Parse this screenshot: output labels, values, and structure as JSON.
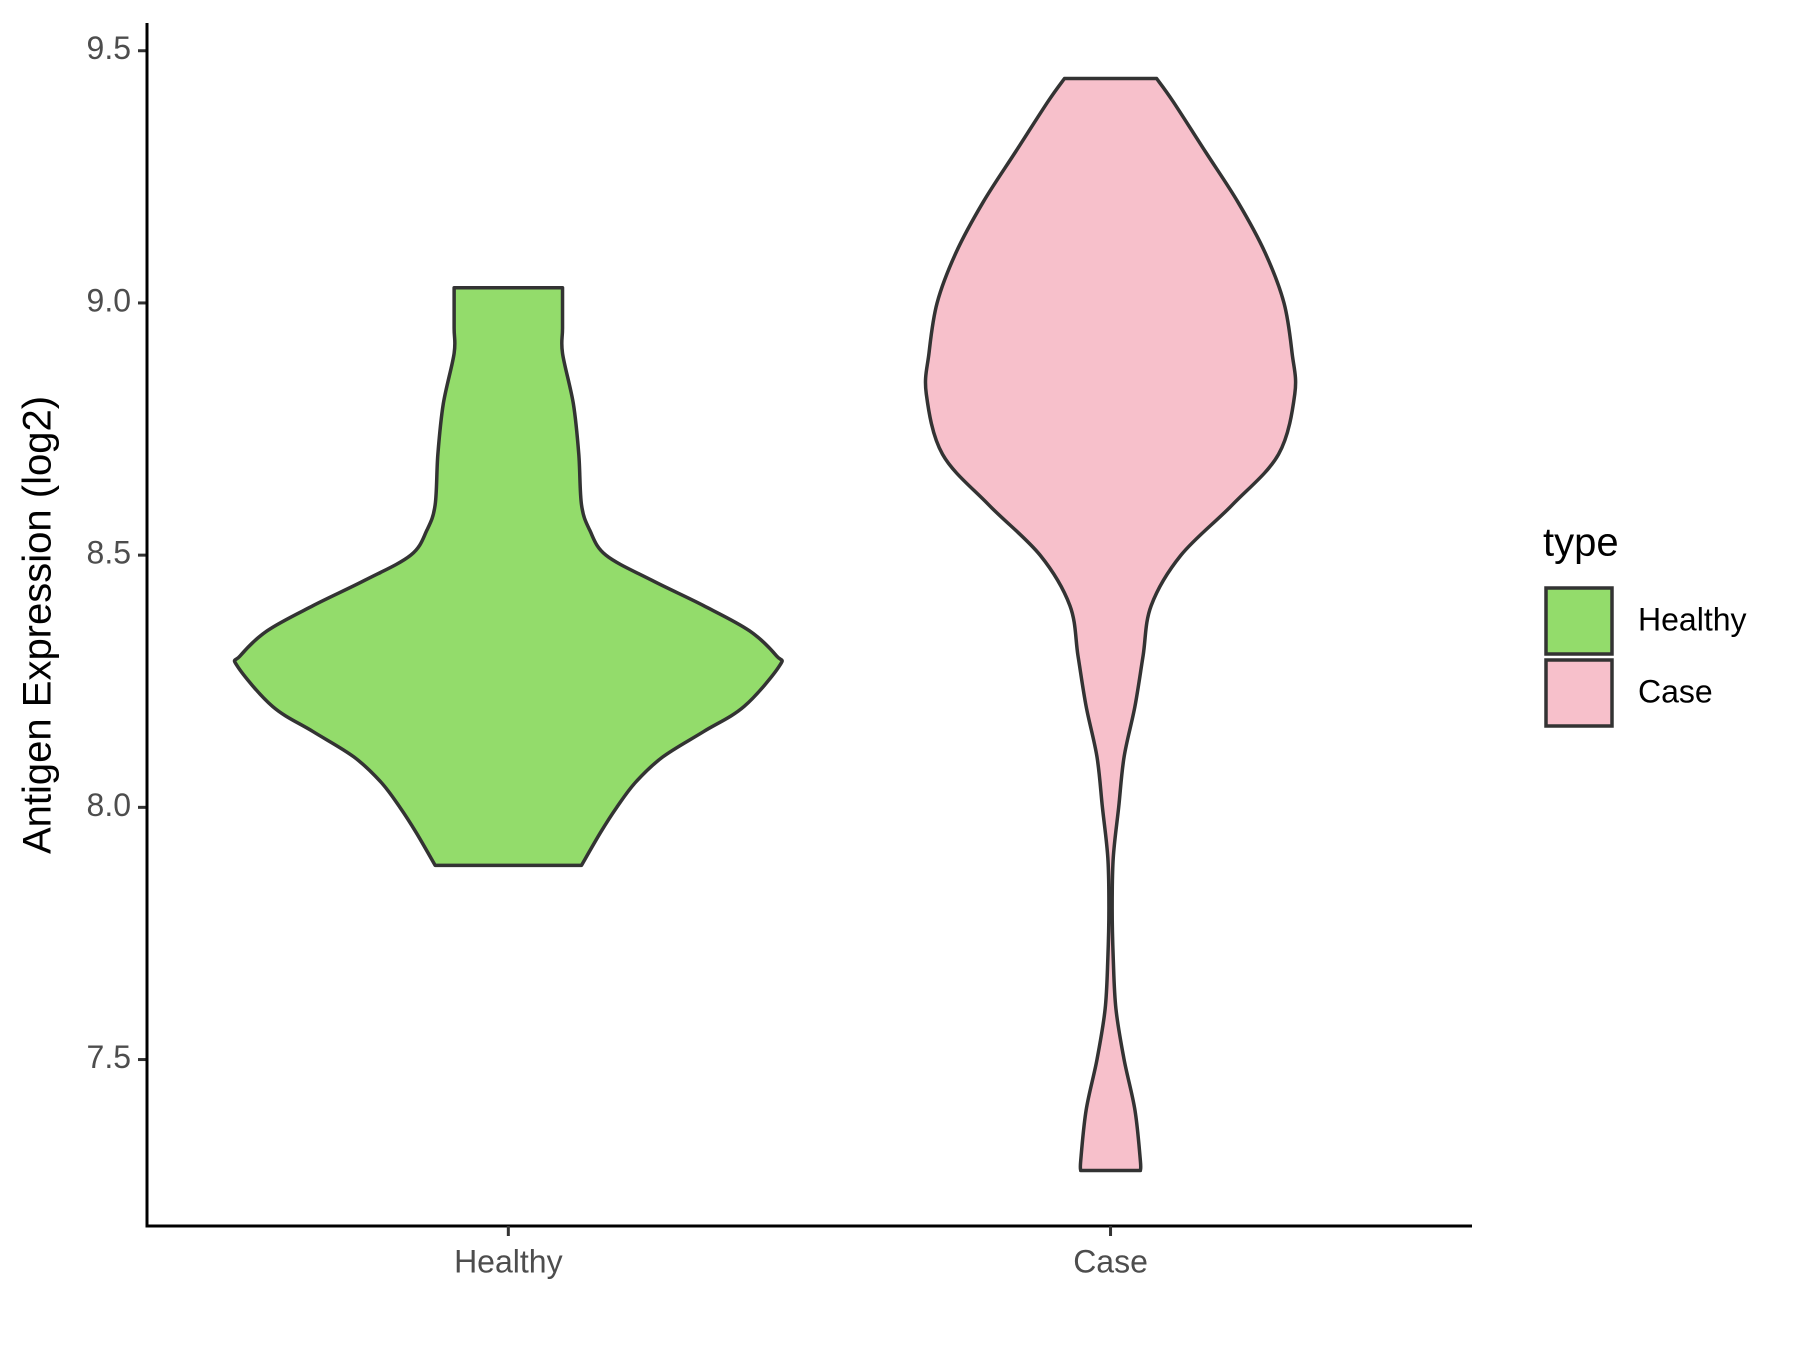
{
  "chart_data": {
    "type": "violin",
    "y_label": "Antigen Expression (log2)",
    "categories": [
      "Healthy",
      "Case"
    ],
    "legend_title": "type",
    "legend_position": "right",
    "series": [
      {
        "name": "Healthy",
        "color": "#93dc6b",
        "y": [
          9.03,
          8.95,
          8.9,
          8.8,
          8.7,
          8.6,
          8.55,
          8.5,
          8.45,
          8.4,
          8.35,
          8.3,
          8.28,
          8.2,
          8.15,
          8.1,
          8.05,
          8.0,
          7.95,
          7.885
        ],
        "density": [
          0.2,
          0.2,
          0.2,
          0.24,
          0.26,
          0.27,
          0.3,
          0.36,
          0.53,
          0.72,
          0.89,
          0.99,
          1.0,
          0.87,
          0.72,
          0.57,
          0.47,
          0.4,
          0.34,
          0.27
        ]
      },
      {
        "name": "Case",
        "color": "#f7c0cb",
        "y": [
          9.445,
          9.4,
          9.3,
          9.2,
          9.1,
          9.0,
          8.9,
          8.82,
          8.7,
          8.6,
          8.5,
          8.4,
          8.3,
          8.2,
          8.1,
          8.0,
          7.9,
          7.8,
          7.7,
          7.6,
          7.5,
          7.4,
          7.3,
          7.28
        ],
        "density": [
          0.17,
          0.23,
          0.35,
          0.47,
          0.57,
          0.64,
          0.67,
          0.68,
          0.62,
          0.45,
          0.26,
          0.15,
          0.12,
          0.09,
          0.05,
          0.03,
          0.01,
          0.006,
          0.01,
          0.02,
          0.05,
          0.09,
          0.11,
          0.11
        ]
      }
    ],
    "ylim": [
      7.17,
      9.555
    ],
    "yticks": [
      7.5,
      {
        "value": 8,
        "label": "8.0"
      },
      8.5,
      {
        "value": 9,
        "label": "9.0"
      },
      9.5
    ]
  }
}
